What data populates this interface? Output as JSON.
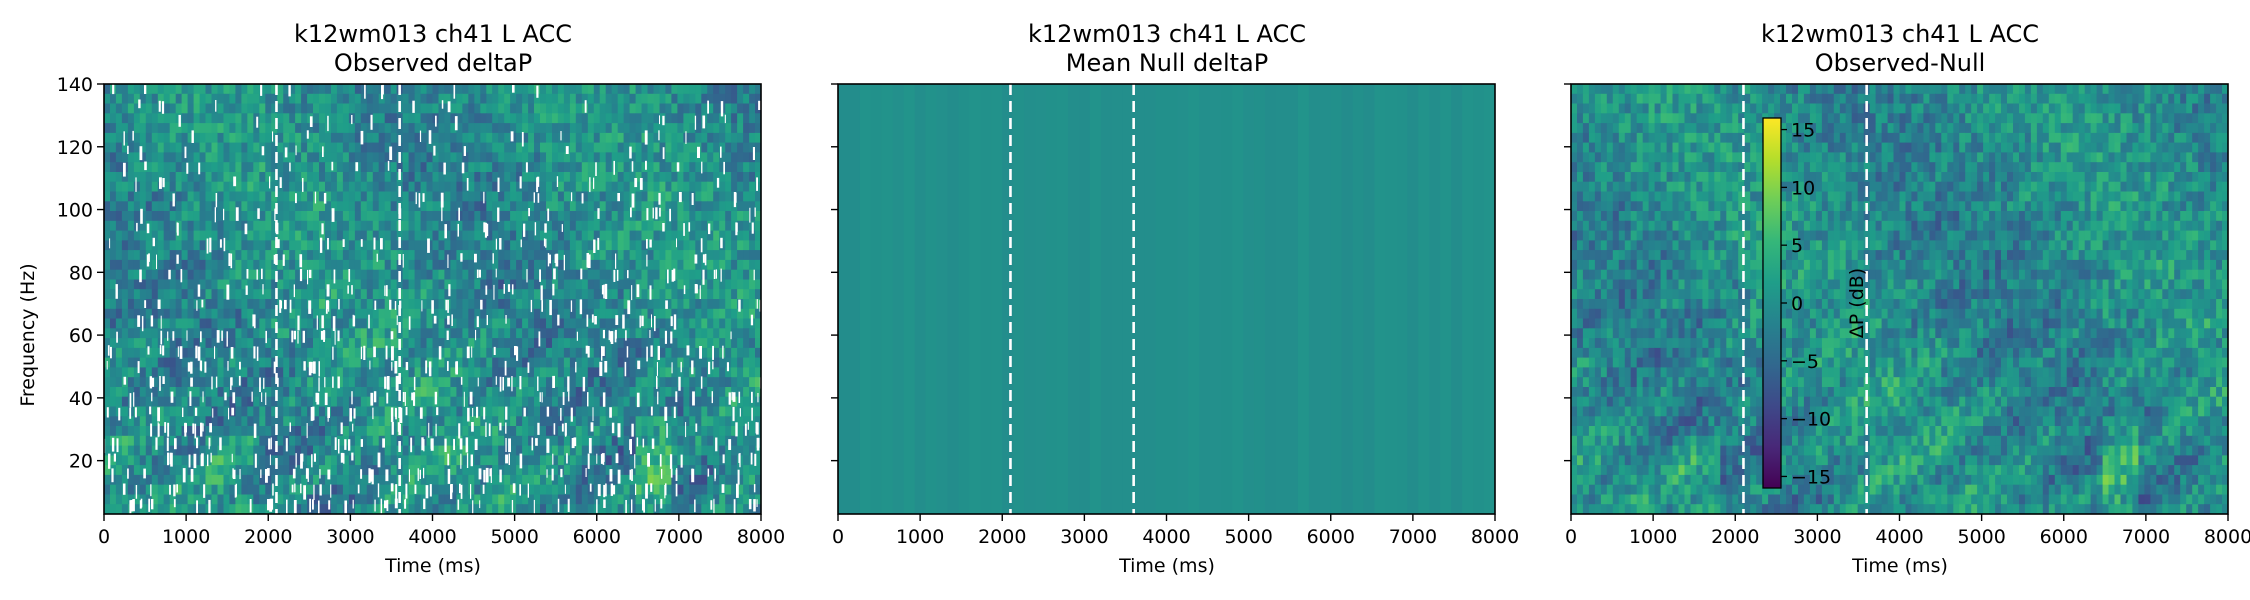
{
  "chart_data": [
    {
      "type": "heatmap",
      "title": "k12wm013 ch41 L ACC",
      "subtitle": "Observed deltaP",
      "xlabel": "Time (ms)",
      "ylabel": "Frequency (Hz)",
      "xlim": [
        0,
        8000
      ],
      "ylim": [
        3,
        140
      ],
      "xticks": [
        0,
        1000,
        2000,
        3000,
        4000,
        5000,
        6000,
        7000,
        8000
      ],
      "yticks": [
        20,
        40,
        60,
        80,
        100,
        120,
        140
      ],
      "event_lines_ms": [
        2100,
        3600
      ],
      "colormap": "viridis",
      "masked_nonsignificant": true
    },
    {
      "type": "heatmap",
      "title": "k12wm013 ch41 L ACC",
      "subtitle": "Mean Null deltaP",
      "xlabel": "Time (ms)",
      "ylabel": "",
      "xlim": [
        0,
        8000
      ],
      "ylim": [
        3,
        140
      ],
      "xticks": [
        0,
        1000,
        2000,
        3000,
        4000,
        5000,
        6000,
        7000,
        8000
      ],
      "yticks": [
        20,
        40,
        60,
        80,
        100,
        120,
        140
      ],
      "event_lines_ms": [
        2100,
        3600
      ],
      "colormap": "viridis"
    },
    {
      "type": "heatmap",
      "title": "k12wm013 ch41 L ACC",
      "subtitle": "Observed-Null",
      "xlabel": "Time (ms)",
      "ylabel": "",
      "xlim": [
        0,
        8000
      ],
      "ylim": [
        3,
        140
      ],
      "xticks": [
        0,
        1000,
        2000,
        3000,
        4000,
        5000,
        6000,
        7000,
        8000
      ],
      "yticks": [
        20,
        40,
        60,
        80,
        100,
        120,
        140
      ],
      "event_lines_ms": [
        2100,
        3600
      ],
      "colormap": "viridis",
      "colorbar": {
        "label": "ΔP (dB)",
        "range": [
          -16,
          16
        ],
        "ticks": [
          15,
          10,
          5,
          0,
          -5,
          -10,
          -15
        ],
        "tick_labels": [
          "15",
          "10",
          "5",
          "0",
          "−5",
          "−10",
          "−15"
        ]
      }
    }
  ],
  "colors": {
    "viridis": [
      "#440154",
      "#482878",
      "#3e4989",
      "#31688e",
      "#26828e",
      "#1f9e89",
      "#35b779",
      "#6ece58",
      "#b5de2b",
      "#fde725"
    ],
    "null_fill": "#24868e",
    "event_line": "#ffffff"
  }
}
